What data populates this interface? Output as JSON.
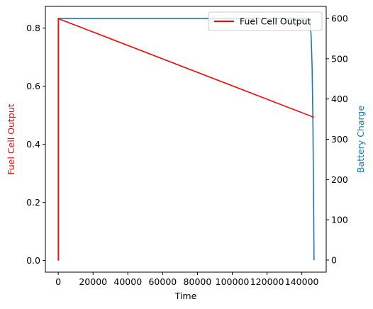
{
  "chart_data": {
    "type": "line",
    "x_axis": {
      "label": "Time",
      "range": [
        -7400,
        154000
      ],
      "ticks": [
        0,
        20000,
        40000,
        60000,
        80000,
        100000,
        120000,
        140000
      ],
      "tick_labels": [
        "0",
        "20000",
        "40000",
        "60000",
        "80000",
        "100000",
        "120000",
        "140000"
      ]
    },
    "y_left": {
      "label": "Fuel Cell Output",
      "color": "#ff0000",
      "range": [
        -0.04,
        0.875
      ],
      "ticks": [
        0.0,
        0.2,
        0.4,
        0.6,
        0.8
      ],
      "tick_labels": [
        "0.0",
        "0.2",
        "0.4",
        "0.6",
        "0.8"
      ]
    },
    "y_right": {
      "label": "Battery Charge",
      "color": "#1f77b4",
      "range": [
        -30,
        630
      ],
      "ticks": [
        0,
        100,
        200,
        300,
        400,
        500,
        600
      ],
      "tick_labels": [
        "0",
        "100",
        "200",
        "300",
        "400",
        "500",
        "600"
      ]
    },
    "series": [
      {
        "name": "Fuel Cell Output",
        "axis": "left",
        "color": "#ff0000",
        "x": [
          0,
          0,
          147000
        ],
        "y": [
          0.0,
          0.833,
          0.493
        ]
      },
      {
        "axis": "right",
        "color": "#1f77b4",
        "x": [
          0,
          143500,
          144500,
          145300,
          145900,
          146400,
          146800,
          147000
        ],
        "y": [
          600,
          600,
          592,
          560,
          480,
          330,
          120,
          0
        ]
      }
    ],
    "legend": {
      "placement": "top-right",
      "entries": [
        {
          "label": "Fuel Cell Output",
          "color": "#ff0000"
        }
      ]
    },
    "grid": false
  }
}
